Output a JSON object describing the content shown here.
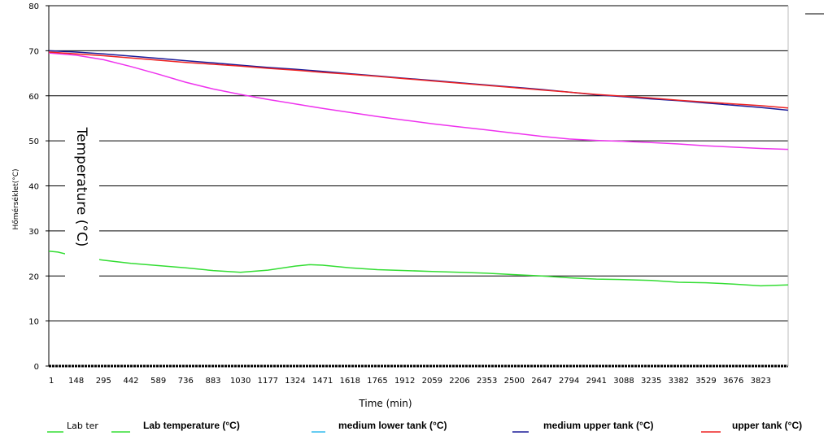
{
  "chart_data": {
    "type": "line",
    "ylabel_original": "Hőmérséklet(°C)",
    "ylabel_overlay": "Temperature (°C)",
    "xlabel": "Time (min)",
    "ylim": [
      0,
      80
    ],
    "yticks": [
      0,
      10,
      20,
      30,
      40,
      50,
      60,
      70,
      80
    ],
    "xlim": [
      1,
      3970
    ],
    "xticks": [
      1,
      148,
      295,
      442,
      589,
      736,
      883,
      1030,
      1177,
      1324,
      1471,
      1618,
      1765,
      1912,
      2059,
      2206,
      2353,
      2500,
      2647,
      2794,
      2941,
      3088,
      3235,
      3382,
      3529,
      3676,
      3823
    ],
    "grid": "horizontal",
    "legend_position": "bottom",
    "colors": {
      "lab": "#33dd33",
      "medium_lower": "#ee33ee",
      "medium_upper": "#1a1a99",
      "upper": "#ee2222",
      "legend_cyan": "#33bbee"
    },
    "legend": [
      {
        "text": "Lab ter",
        "color": "#33dd33",
        "style": "plain"
      },
      {
        "text": "Lab temperature (°C)",
        "color": "#33dd33",
        "style": "bold"
      },
      {
        "text": "medium lower tank (°C)",
        "color": "#33bbee",
        "style": "bold"
      },
      {
        "text": "medium upper tank (°C)",
        "color": "#1a1a99",
        "style": "bold"
      },
      {
        "text": "upper tank (°C)",
        "color": "#ee2222",
        "style": "bold"
      }
    ],
    "series": [
      {
        "key": "lab",
        "color": "#33dd33",
        "x": [
          1,
          50,
          100,
          148,
          295,
          442,
          589,
          736,
          883,
          1030,
          1177,
          1324,
          1400,
          1471,
          1618,
          1765,
          1912,
          2059,
          2206,
          2353,
          2500,
          2647,
          2794,
          2941,
          3088,
          3235,
          3382,
          3529,
          3676,
          3823,
          3970
        ],
        "y": [
          25.5,
          25.3,
          24.8,
          24.3,
          23.5,
          22.8,
          22.3,
          21.8,
          21.2,
          20.8,
          21.3,
          22.2,
          22.5,
          22.4,
          21.8,
          21.4,
          21.2,
          21.0,
          20.8,
          20.6,
          20.3,
          20.0,
          19.6,
          19.3,
          19.2,
          19.0,
          18.6,
          18.5,
          18.2,
          17.8,
          18.0
        ]
      },
      {
        "key": "medium_lower",
        "color": "#ee33ee",
        "x": [
          1,
          148,
          295,
          442,
          589,
          736,
          883,
          1030,
          1177,
          1324,
          1471,
          1618,
          1765,
          1912,
          2059,
          2206,
          2353,
          2500,
          2647,
          2794,
          2941,
          3088,
          3235,
          3382,
          3529,
          3676,
          3823,
          3970
        ],
        "y": [
          69.5,
          69.0,
          68.0,
          66.5,
          64.8,
          63.0,
          61.5,
          60.3,
          59.2,
          58.2,
          57.2,
          56.3,
          55.4,
          54.6,
          53.8,
          53.1,
          52.4,
          51.7,
          51.0,
          50.4,
          50.1,
          49.9,
          49.6,
          49.3,
          48.9,
          48.6,
          48.3,
          48.1
        ]
      },
      {
        "key": "medium_upper",
        "color": "#1a1a99",
        "x": [
          1,
          148,
          295,
          442,
          589,
          736,
          883,
          1030,
          1177,
          1324,
          1471,
          1618,
          1765,
          1912,
          2059,
          2206,
          2353,
          2500,
          2647,
          2794,
          2941,
          3088,
          3235,
          3382,
          3529,
          3676,
          3823,
          3970
        ],
        "y": [
          70.0,
          69.7,
          69.3,
          68.8,
          68.3,
          67.8,
          67.3,
          66.8,
          66.3,
          65.9,
          65.4,
          64.9,
          64.4,
          63.9,
          63.4,
          62.9,
          62.4,
          61.9,
          61.4,
          60.8,
          60.2,
          59.8,
          59.3,
          58.9,
          58.4,
          57.9,
          57.4,
          56.8
        ]
      },
      {
        "key": "upper",
        "color": "#ee2222",
        "x": [
          1,
          148,
          295,
          442,
          589,
          736,
          883,
          1030,
          1177,
          1324,
          1471,
          1618,
          1765,
          1912,
          2059,
          2206,
          2353,
          2500,
          2647,
          2794,
          2941,
          3088,
          3235,
          3382,
          3529,
          3676,
          3823,
          3970
        ],
        "y": [
          69.7,
          69.3,
          68.9,
          68.4,
          67.9,
          67.4,
          67.0,
          66.6,
          66.1,
          65.7,
          65.2,
          64.8,
          64.3,
          63.8,
          63.3,
          62.8,
          62.3,
          61.8,
          61.3,
          60.8,
          60.3,
          59.9,
          59.5,
          59.0,
          58.6,
          58.2,
          57.8,
          57.3
        ]
      }
    ]
  }
}
